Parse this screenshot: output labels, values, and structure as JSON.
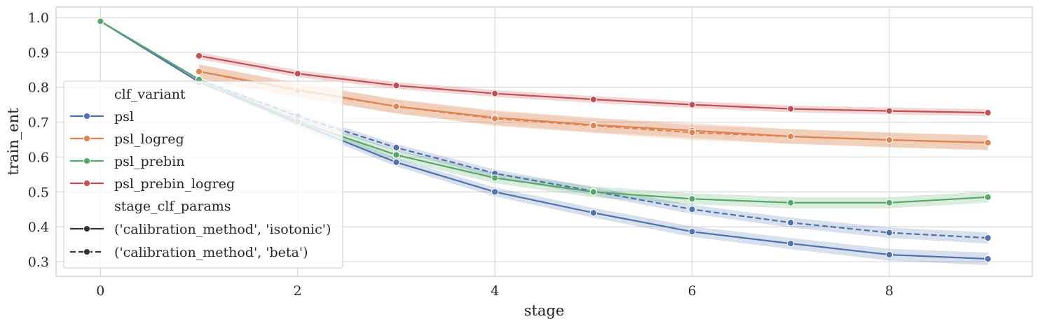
{
  "chart_data": {
    "type": "line",
    "xlabel": "stage",
    "ylabel": "train_ent",
    "xlim": [
      -0.45,
      9.45
    ],
    "ylim": [
      0.258,
      1.03
    ],
    "xticks": [
      0,
      2,
      4,
      6,
      8
    ],
    "yticks": [
      0.3,
      0.4,
      0.5,
      0.6,
      0.7,
      0.8,
      0.9,
      1.0
    ],
    "xtick_labels": [
      "0",
      "2",
      "4",
      "6",
      "8"
    ],
    "ytick_labels": [
      "0.3",
      "0.4",
      "0.5",
      "0.6",
      "0.7",
      "0.8",
      "0.9",
      "1.0"
    ],
    "grid": true,
    "legend_placement": "lower-left",
    "legend": {
      "hue_title": "clf_variant",
      "style_title": "stage_clf_params",
      "style_entries": [
        {
          "name": "('calibration_method', 'isotonic')",
          "dash": "solid"
        },
        {
          "name": "('calibration_method', 'beta')",
          "dash": "dashed"
        }
      ]
    },
    "series": [
      {
        "name": "psl",
        "color": "#4c72b0",
        "style": "isotonic",
        "x": [
          0,
          1,
          2,
          3,
          4,
          5,
          6,
          7,
          8,
          9
        ],
        "values": [
          0.989,
          0.815,
          0.698,
          0.585,
          0.5,
          0.44,
          0.386,
          0.352,
          0.32,
          0.308
        ],
        "band": [
          0,
          0,
          0.012,
          0.012,
          0.013,
          0.014,
          0.015,
          0.016,
          0.017,
          0.018
        ]
      },
      {
        "name": "psl",
        "color": "#4c72b0",
        "style": "beta",
        "x": [
          0,
          1,
          2,
          3,
          4,
          5,
          6,
          7,
          8,
          9
        ],
        "values": [
          0.989,
          0.822,
          0.717,
          0.627,
          0.553,
          0.502,
          0.45,
          0.412,
          0.383,
          0.368
        ],
        "band": [
          0,
          0,
          0.01,
          0.01,
          0.011,
          0.012,
          0.013,
          0.014,
          0.015,
          0.016
        ]
      },
      {
        "name": "psl_logreg",
        "color": "#dd8452",
        "style": "isotonic",
        "x": [
          1,
          2,
          3,
          4,
          5,
          6,
          7,
          8,
          9
        ],
        "values": [
          0.845,
          0.793,
          0.745,
          0.713,
          0.692,
          0.676,
          0.659,
          0.649,
          0.641
        ],
        "band": [
          0.02,
          0.02,
          0.02,
          0.021,
          0.021,
          0.021,
          0.021,
          0.021,
          0.021
        ]
      },
      {
        "name": "psl_logreg",
        "color": "#dd8452",
        "style": "beta",
        "x": [
          1,
          2,
          3,
          4,
          5,
          6,
          7,
          8,
          9
        ],
        "values": [
          0.845,
          0.79,
          0.745,
          0.71,
          0.69,
          0.67,
          0.659,
          0.649,
          0.641
        ],
        "band": [
          0.02,
          0.02,
          0.02,
          0.021,
          0.021,
          0.021,
          0.021,
          0.021,
          0.021
        ]
      },
      {
        "name": "psl_prebin",
        "color": "#55a868",
        "style": "isotonic",
        "x": [
          0,
          1,
          2,
          3,
          4,
          5,
          6,
          7,
          8,
          9
        ],
        "values": [
          0.989,
          0.822,
          0.702,
          0.606,
          0.54,
          0.5,
          0.48,
          0.469,
          0.469,
          0.485
        ],
        "band": [
          0,
          0,
          0.012,
          0.014,
          0.015,
          0.016,
          0.016,
          0.016,
          0.016,
          0.016
        ]
      },
      {
        "name": "psl_prebin_logreg",
        "color": "#c44e52",
        "style": "isotonic",
        "x": [
          1,
          2,
          3,
          4,
          5,
          6,
          7,
          8,
          9
        ],
        "values": [
          0.89,
          0.839,
          0.805,
          0.782,
          0.765,
          0.75,
          0.738,
          0.732,
          0.727
        ],
        "band": [
          0.01,
          0.01,
          0.01,
          0.01,
          0.01,
          0.01,
          0.01,
          0.01,
          0.01
        ]
      }
    ]
  }
}
